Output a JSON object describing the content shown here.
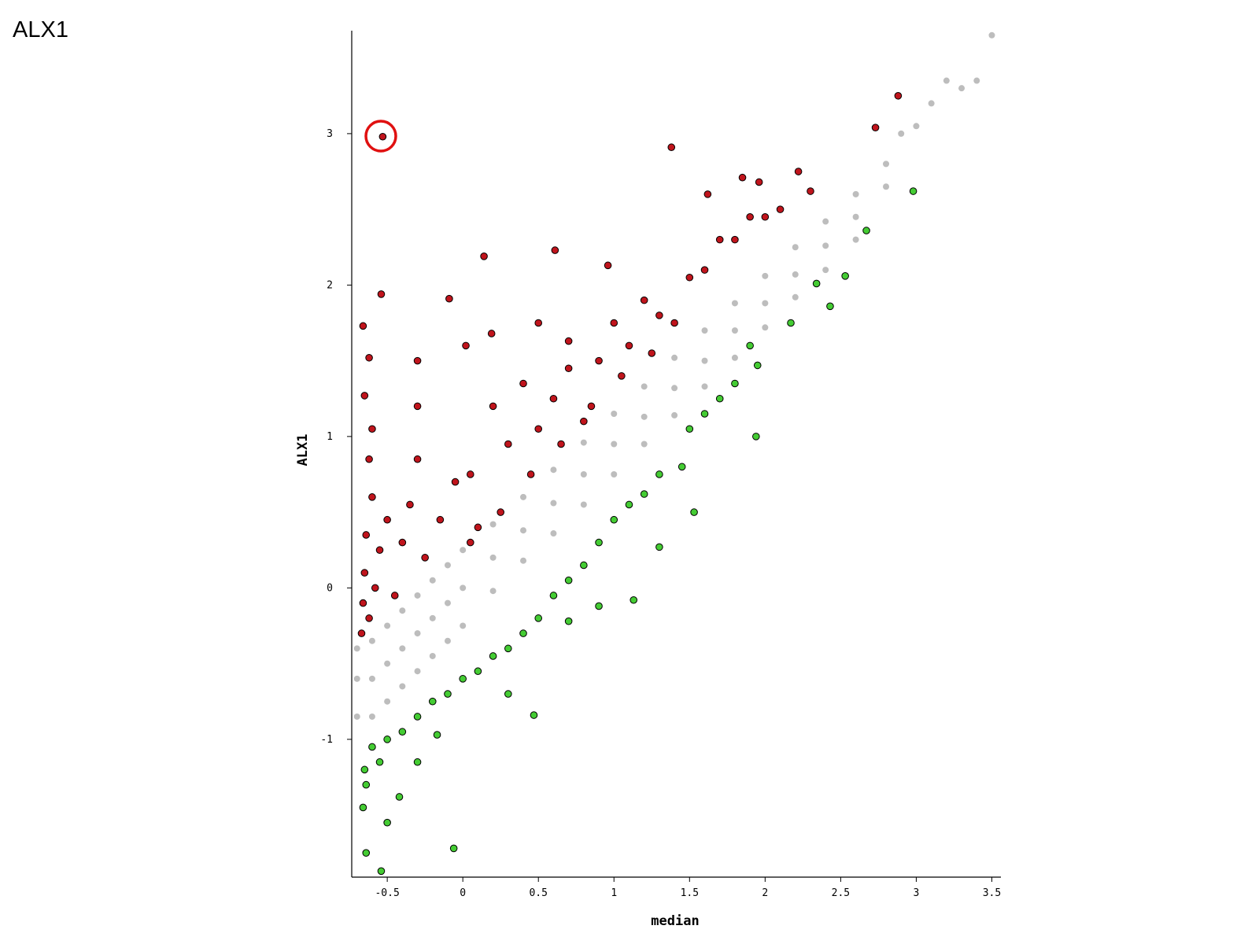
{
  "page_title": "ALX1",
  "chart_data": {
    "type": "scatter",
    "x_label": "median",
    "y_label": "ALX1",
    "xlim": [
      -0.735,
      3.56
    ],
    "ylim": [
      -1.91,
      3.68
    ],
    "xticks": [
      -0.5,
      0,
      0.5,
      1,
      1.5,
      2,
      2.5,
      3,
      3.5
    ],
    "yticks": [
      -1,
      0,
      1,
      2,
      3
    ],
    "series": [
      {
        "color": "#bdbdbd",
        "x": [
          -0.7,
          -0.7,
          -0.7,
          -0.6,
          -0.6,
          -0.6,
          -0.5,
          -0.5,
          -0.5,
          -0.4,
          -0.4,
          -0.4,
          -0.3,
          -0.3,
          -0.3,
          -0.2,
          -0.2,
          -0.2,
          -0.1,
          -0.1,
          -0.1,
          0,
          0,
          0,
          0.2,
          0.2,
          0.2,
          0.4,
          0.4,
          0.4,
          0.6,
          0.6,
          0.6,
          0.8,
          0.8,
          0.8,
          1,
          1,
          1,
          1.2,
          1.2,
          1.2,
          1.4,
          1.4,
          1.4,
          1.6,
          1.6,
          1.6,
          1.8,
          1.8,
          1.8,
          2,
          2,
          2,
          2.2,
          2.2,
          2.2,
          2.4,
          2.4,
          2.4,
          2.6,
          2.6,
          2.6,
          2.8,
          2.8,
          2.9,
          3.0,
          3.1,
          3.2,
          3.3,
          3.4,
          3.5
        ],
        "values": [
          -0.4,
          -0.6,
          -0.85,
          -0.35,
          -0.6,
          -0.85,
          -0.25,
          -0.5,
          -0.75,
          -0.15,
          -0.4,
          -0.65,
          -0.05,
          -0.3,
          -0.55,
          0.05,
          -0.2,
          -0.45,
          0.15,
          -0.1,
          -0.35,
          0.25,
          0,
          -0.25,
          0.42,
          0.2,
          -0.02,
          0.6,
          0.38,
          0.18,
          0.78,
          0.56,
          0.36,
          0.96,
          0.75,
          0.55,
          1.15,
          0.95,
          0.75,
          1.33,
          1.13,
          0.95,
          1.52,
          1.32,
          1.14,
          1.7,
          1.5,
          1.33,
          1.88,
          1.7,
          1.52,
          2.06,
          1.88,
          1.72,
          2.25,
          2.07,
          1.92,
          2.42,
          2.26,
          2.1,
          2.6,
          2.45,
          2.3,
          2.8,
          2.65,
          3.0,
          3.05,
          3.2,
          3.35,
          3.3,
          3.35,
          3.65
        ]
      },
      {
        "color": "#c0141c",
        "x": [
          -0.53,
          1.38,
          2.88,
          2.73,
          -0.54,
          0.14,
          -0.09,
          0.61,
          0.96,
          1.85,
          1.96,
          2.22,
          1.62,
          0.19,
          -0.66,
          -0.62,
          -0.3,
          -0.3,
          0.02,
          0.5,
          0.7,
          -0.65,
          -0.6,
          -0.62,
          -0.6,
          -0.64,
          -0.65,
          -0.66,
          -0.67,
          -0.62,
          -0.58,
          -0.55,
          -0.5,
          -0.4,
          -0.35,
          -0.3,
          -0.25,
          -0.15,
          -0.05,
          0.05,
          0.1,
          0.2,
          0.3,
          0.4,
          0.5,
          0.6,
          0.7,
          0.8,
          0.9,
          1.0,
          1.1,
          1.2,
          1.3,
          1.4,
          1.5,
          1.6,
          1.7,
          1.8,
          1.9,
          2.0,
          2.1,
          2.3,
          0.05,
          0.25,
          0.45,
          0.65,
          0.85,
          1.05,
          1.25,
          -0.45
        ],
        "values": [
          2.98,
          2.91,
          3.25,
          3.04,
          1.94,
          2.19,
          1.91,
          2.23,
          2.13,
          2.71,
          2.68,
          2.75,
          2.6,
          1.68,
          1.73,
          1.52,
          1.5,
          1.2,
          1.6,
          1.75,
          1.63,
          1.27,
          1.05,
          0.85,
          0.6,
          0.35,
          0.1,
          -0.1,
          -0.3,
          -0.2,
          0.0,
          0.25,
          0.45,
          0.3,
          0.55,
          0.85,
          0.2,
          0.45,
          0.7,
          0.75,
          0.4,
          1.2,
          0.95,
          1.35,
          1.05,
          1.25,
          1.45,
          1.1,
          1.5,
          1.75,
          1.6,
          1.9,
          1.8,
          1.75,
          2.05,
          2.1,
          2.3,
          2.3,
          2.45,
          2.45,
          2.5,
          2.62,
          0.3,
          0.5,
          0.75,
          0.95,
          1.2,
          1.4,
          1.55,
          -0.05
        ]
      },
      {
        "color": "#44cc33",
        "x": [
          2.98,
          2.67,
          2.53,
          2.43,
          2.34,
          2.17,
          1.95,
          1.9,
          1.8,
          1.7,
          1.6,
          1.5,
          1.94,
          1.45,
          1.53,
          1.3,
          1.3,
          1.2,
          1.1,
          1.0,
          0.9,
          0.8,
          0.7,
          0.6,
          0.5,
          0.4,
          0.3,
          0.2,
          0.1,
          0,
          -0.1,
          -0.2,
          -0.3,
          -0.4,
          -0.5,
          -0.6,
          -0.65,
          -0.66,
          -0.64,
          -0.55,
          -0.5,
          -0.64,
          -0.54,
          -0.06,
          0.47,
          1.13,
          0.9,
          0.7,
          -0.3,
          -0.17,
          0.3,
          -0.42
        ],
        "values": [
          2.62,
          2.36,
          2.06,
          1.86,
          2.01,
          1.75,
          1.47,
          1.6,
          1.35,
          1.25,
          1.15,
          1.05,
          1.0,
          0.8,
          0.5,
          0.75,
          0.27,
          0.62,
          0.55,
          0.45,
          0.3,
          0.15,
          0.05,
          -0.05,
          -0.2,
          -0.3,
          -0.4,
          -0.45,
          -0.55,
          -0.6,
          -0.7,
          -0.75,
          -0.85,
          -0.95,
          -1.0,
          -1.05,
          -1.2,
          -1.45,
          -1.3,
          -1.15,
          -1.55,
          -1.75,
          -1.87,
          -1.72,
          -0.84,
          -0.08,
          -0.12,
          -0.22,
          -1.15,
          -0.97,
          -0.7,
          -1.38
        ]
      }
    ]
  }
}
